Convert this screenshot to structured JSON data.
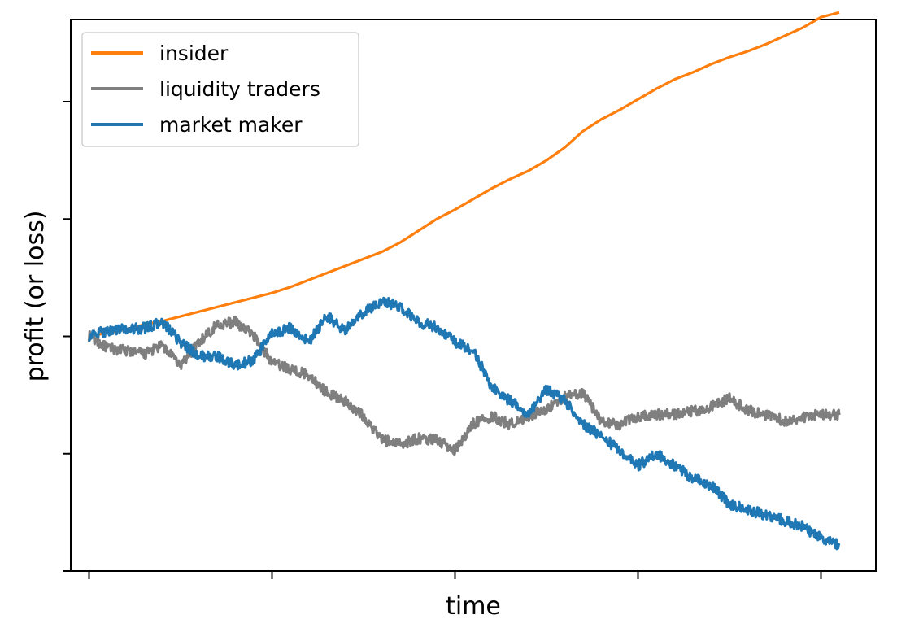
{
  "chart_data": {
    "type": "line",
    "title": "",
    "xlabel": "time",
    "ylabel": "profit (or loss)",
    "xlim": [
      -0.1,
      4.3
    ],
    "ylim": [
      -2.0,
      2.7
    ],
    "xticks": [
      0,
      1,
      2,
      3,
      4
    ],
    "yticks": [
      -2,
      -1,
      0,
      1,
      2
    ],
    "tick_labels_shown": false,
    "grid": false,
    "legend": {
      "placement": "top-left"
    },
    "series": [
      {
        "name": "insider",
        "color": "#ff7f0e",
        "x": [
          0,
          0.1,
          0.2,
          0.3,
          0.4,
          0.5,
          0.6,
          0.7,
          0.8,
          0.9,
          1.0,
          1.1,
          1.2,
          1.3,
          1.4,
          1.5,
          1.6,
          1.7,
          1.8,
          1.9,
          2.0,
          2.1,
          2.2,
          2.3,
          2.4,
          2.5,
          2.6,
          2.7,
          2.8,
          2.9,
          3.0,
          3.1,
          3.2,
          3.3,
          3.4,
          3.5,
          3.6,
          3.7,
          3.8,
          3.9,
          4.0,
          4.1
        ],
        "y": [
          0.0,
          0.03,
          0.06,
          0.1,
          0.13,
          0.17,
          0.21,
          0.25,
          0.29,
          0.33,
          0.37,
          0.42,
          0.48,
          0.54,
          0.6,
          0.66,
          0.72,
          0.8,
          0.9,
          1.0,
          1.08,
          1.17,
          1.26,
          1.34,
          1.41,
          1.5,
          1.61,
          1.75,
          1.85,
          1.93,
          2.02,
          2.11,
          2.19,
          2.25,
          2.32,
          2.38,
          2.43,
          2.49,
          2.56,
          2.63,
          2.72,
          2.76
        ]
      },
      {
        "name": "liquidity traders",
        "color": "#7f7f7f",
        "x": [
          0,
          0.1,
          0.2,
          0.3,
          0.4,
          0.5,
          0.6,
          0.7,
          0.8,
          0.9,
          1.0,
          1.1,
          1.2,
          1.3,
          1.4,
          1.5,
          1.6,
          1.7,
          1.8,
          1.9,
          2.0,
          2.1,
          2.2,
          2.3,
          2.4,
          2.5,
          2.6,
          2.7,
          2.8,
          2.9,
          3.0,
          3.1,
          3.2,
          3.3,
          3.4,
          3.5,
          3.6,
          3.7,
          3.8,
          3.9,
          4.0,
          4.1
        ],
        "y": [
          0.0,
          -0.1,
          -0.12,
          -0.15,
          -0.08,
          -0.25,
          -0.05,
          0.1,
          0.12,
          0.01,
          -0.22,
          -0.28,
          -0.33,
          -0.48,
          -0.55,
          -0.68,
          -0.88,
          -0.92,
          -0.87,
          -0.88,
          -0.97,
          -0.74,
          -0.68,
          -0.75,
          -0.68,
          -0.62,
          -0.52,
          -0.48,
          -0.73,
          -0.75,
          -0.68,
          -0.67,
          -0.66,
          -0.64,
          -0.6,
          -0.53,
          -0.63,
          -0.67,
          -0.72,
          -0.69,
          -0.66,
          -0.67
        ]
      },
      {
        "name": "market maker",
        "color": "#1f77b4",
        "x": [
          0,
          0.1,
          0.2,
          0.3,
          0.4,
          0.5,
          0.6,
          0.7,
          0.8,
          0.9,
          1.0,
          1.1,
          1.2,
          1.3,
          1.4,
          1.5,
          1.6,
          1.7,
          1.8,
          1.9,
          2.0,
          2.1,
          2.2,
          2.3,
          2.4,
          2.5,
          2.6,
          2.7,
          2.8,
          2.9,
          3.0,
          3.1,
          3.2,
          3.3,
          3.4,
          3.5,
          3.6,
          3.7,
          3.8,
          3.9,
          4.0,
          4.1
        ],
        "y": [
          0.0,
          0.05,
          0.06,
          0.07,
          0.12,
          -0.05,
          -0.17,
          -0.17,
          -0.25,
          -0.2,
          0.02,
          0.07,
          -0.05,
          0.17,
          0.05,
          0.2,
          0.3,
          0.25,
          0.12,
          0.08,
          -0.05,
          -0.12,
          -0.43,
          -0.55,
          -0.66,
          -0.45,
          -0.55,
          -0.75,
          -0.85,
          -0.97,
          -1.1,
          -1.0,
          -1.1,
          -1.21,
          -1.27,
          -1.43,
          -1.48,
          -1.52,
          -1.57,
          -1.62,
          -1.72,
          -1.78
        ]
      }
    ]
  }
}
